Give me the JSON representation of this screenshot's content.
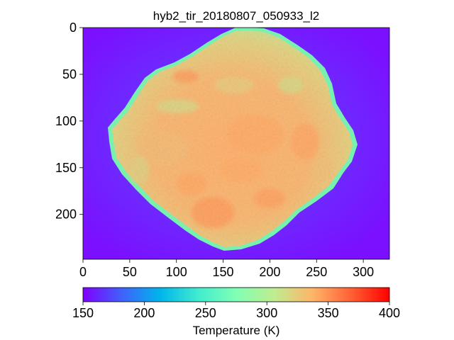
{
  "title": "hyb2_tir_20180807_050933_l2",
  "image": {
    "type": "heatmap",
    "subject": "asteroid-thermal-image",
    "colormap": "rainbow",
    "x_range": [
      0,
      328
    ],
    "y_range": [
      0,
      248
    ],
    "y_inverted": true,
    "x_ticks": [
      0,
      50,
      100,
      150,
      200,
      250,
      300
    ],
    "y_ticks": [
      0,
      50,
      100,
      150,
      200
    ],
    "x_tick_labels": [
      "0",
      "50",
      "100",
      "150",
      "200",
      "250",
      "300"
    ],
    "y_tick_labels": [
      "0",
      "50",
      "100",
      "150",
      "200"
    ],
    "background_temperature_K": 165,
    "surface_temperature_K_typical": 320
  },
  "colorbar": {
    "label": "Temperature (K)",
    "vmin": 150,
    "vmax": 400,
    "ticks": [
      150,
      200,
      250,
      300,
      350,
      400
    ],
    "tick_labels": [
      "150",
      "200",
      "250",
      "300",
      "350",
      "400"
    ],
    "orientation": "horizontal"
  },
  "colors": {
    "background": "#7a10ff",
    "surface": "#f0c070",
    "warm_patch": "#ff9c5c",
    "limb": "#70ffb0"
  }
}
